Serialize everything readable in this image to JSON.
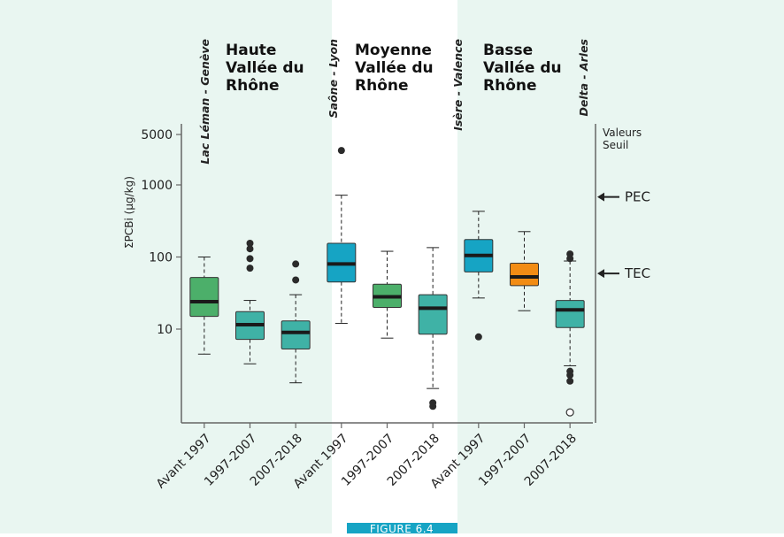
{
  "chart_data": {
    "type": "box",
    "ylabel": "ΣPCBi (µg/kg)",
    "yscale": "log",
    "yticks": [
      10,
      100,
      1000,
      5000
    ],
    "ytick_labels": [
      "10",
      "100",
      "1000",
      "5000"
    ],
    "ylim": [
      0.6,
      7000
    ],
    "regions": [
      {
        "title": [
          "Haute",
          "Vallée du",
          "Rhône"
        ]
      },
      {
        "title": [
          "Moyenne",
          "Vallée du",
          "Rhône"
        ]
      },
      {
        "title": [
          "Basse",
          "Vallée du",
          "Rhône"
        ]
      }
    ],
    "section_labels": [
      "Lac Léman - Genève",
      "Saône - Lyon",
      "Isère - Valence",
      "Delta - Arles"
    ],
    "categories": [
      "Avant 1997",
      "1997-2007",
      "2007-2018",
      "Avant 1997",
      "1997-2007",
      "2007-2018",
      "Avant 1997",
      "1997-2007",
      "2007-2018"
    ],
    "boxes": [
      {
        "region": 0,
        "label": "Avant 1997",
        "color": "#4caf6a",
        "whisker_low": 4.5,
        "q1": 15,
        "median": 24,
        "q3": 52,
        "whisker_high": 100,
        "outliers": []
      },
      {
        "region": 0,
        "label": "1997-2007",
        "color": "#3fb2a6",
        "whisker_low": 3.3,
        "q1": 7.2,
        "median": 11.5,
        "q3": 17.5,
        "whisker_high": 25,
        "outliers": [
          70,
          95,
          130,
          155
        ]
      },
      {
        "region": 0,
        "label": "2007-2018",
        "color": "#3fb2a6",
        "whisker_low": 1.8,
        "q1": 5.3,
        "median": 9,
        "q3": 13,
        "whisker_high": 30,
        "outliers": [
          48,
          80
        ]
      },
      {
        "region": 1,
        "label": "Avant 1997",
        "color": "#16a4c4",
        "whisker_low": 12,
        "q1": 45,
        "median": 80,
        "q3": 155,
        "whisker_high": 720,
        "outliers": [
          3000
        ]
      },
      {
        "region": 1,
        "label": "1997-2007",
        "color": "#4caf6a",
        "whisker_low": 7.5,
        "q1": 20,
        "median": 28,
        "q3": 42,
        "whisker_high": 120,
        "outliers": []
      },
      {
        "region": 1,
        "label": "2007-2018",
        "color": "#3fb2a6",
        "whisker_low": 1.5,
        "q1": 8.5,
        "median": 19.5,
        "q3": 30,
        "whisker_high": 135,
        "outliers": [
          0.95,
          0.85
        ]
      },
      {
        "region": 2,
        "label": "Avant 1997",
        "color": "#16a4c4",
        "whisker_low": 27,
        "q1": 62,
        "median": 105,
        "q3": 175,
        "whisker_high": 430,
        "outliers": [
          7.8
        ]
      },
      {
        "region": 2,
        "label": "1997-2007",
        "color": "#f28c14",
        "whisker_low": 18,
        "q1": 40,
        "median": 53,
        "q3": 82,
        "whisker_high": 225,
        "outliers": []
      },
      {
        "region": 2,
        "label": "2007-2018",
        "color": "#3fb2a6",
        "whisker_low": 3.1,
        "q1": 10.5,
        "median": 18.5,
        "q3": 25,
        "whisker_high": 88,
        "outliers": [
          95,
          110,
          2.6,
          2.3,
          1.9
        ],
        "open_outliers": [
          0.7
        ]
      }
    ],
    "reference_lines": [
      {
        "label": "PEC",
        "value": 680
      },
      {
        "label": "TEC",
        "value": 59
      }
    ],
    "reference_axis_label": [
      "Valeurs",
      "Seuil"
    ],
    "colors": {
      "middle_band": "#ffffff",
      "side_band": "#e9f6f1",
      "figure_tag": "#16a4c4"
    }
  },
  "figure_tag": "FIGURE 6.4"
}
